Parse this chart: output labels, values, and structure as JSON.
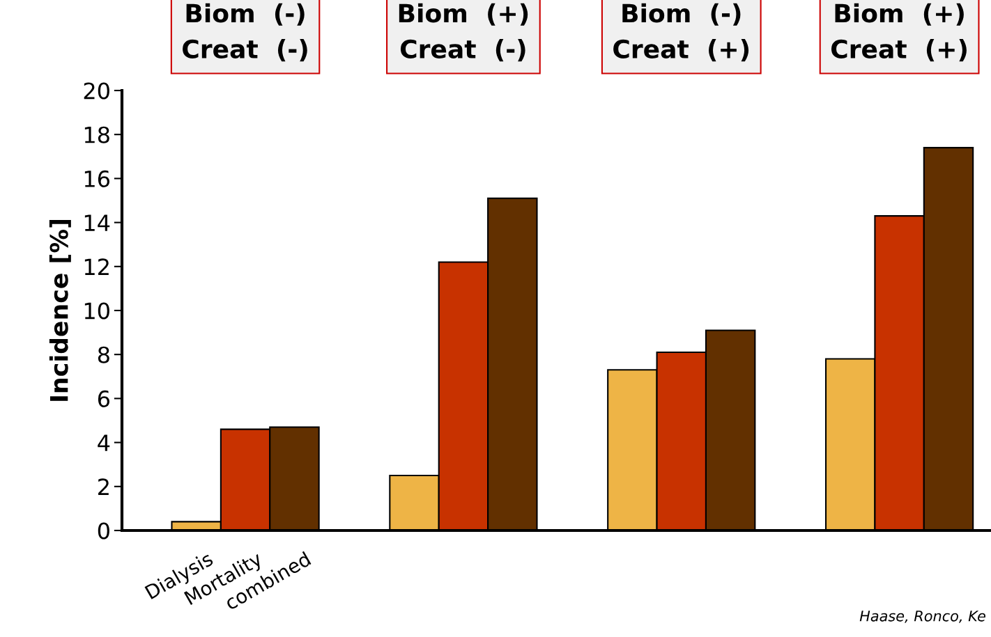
{
  "chart_data": {
    "type": "bar",
    "ylabel": "Incidence [%]",
    "categories": [
      "Biom  (-)\nCreat  (-)",
      "Biom  (+)\nCreat  (-)",
      "Biom  (-)\nCreat  (+)",
      "Biom  (+)\nCreat  (+)"
    ],
    "series": [
      {
        "name": "Dialysis",
        "color": "#eeb446",
        "values": [
          0.4,
          2.5,
          7.3,
          7.8
        ]
      },
      {
        "name": "Mortality",
        "color": "#c83200",
        "values": [
          4.6,
          12.2,
          8.1,
          14.3
        ]
      },
      {
        "name": "combined",
        "color": "#623000",
        "values": [
          4.7,
          15.1,
          9.1,
          17.4
        ]
      }
    ],
    "ylim": [
      0,
      20
    ],
    "yticks": [
      0,
      2,
      4,
      6,
      8,
      10,
      12,
      14,
      16,
      18,
      20
    ],
    "grid": false,
    "legend": false,
    "annotations": [
      "Haase, Ronco, Ke"
    ]
  }
}
